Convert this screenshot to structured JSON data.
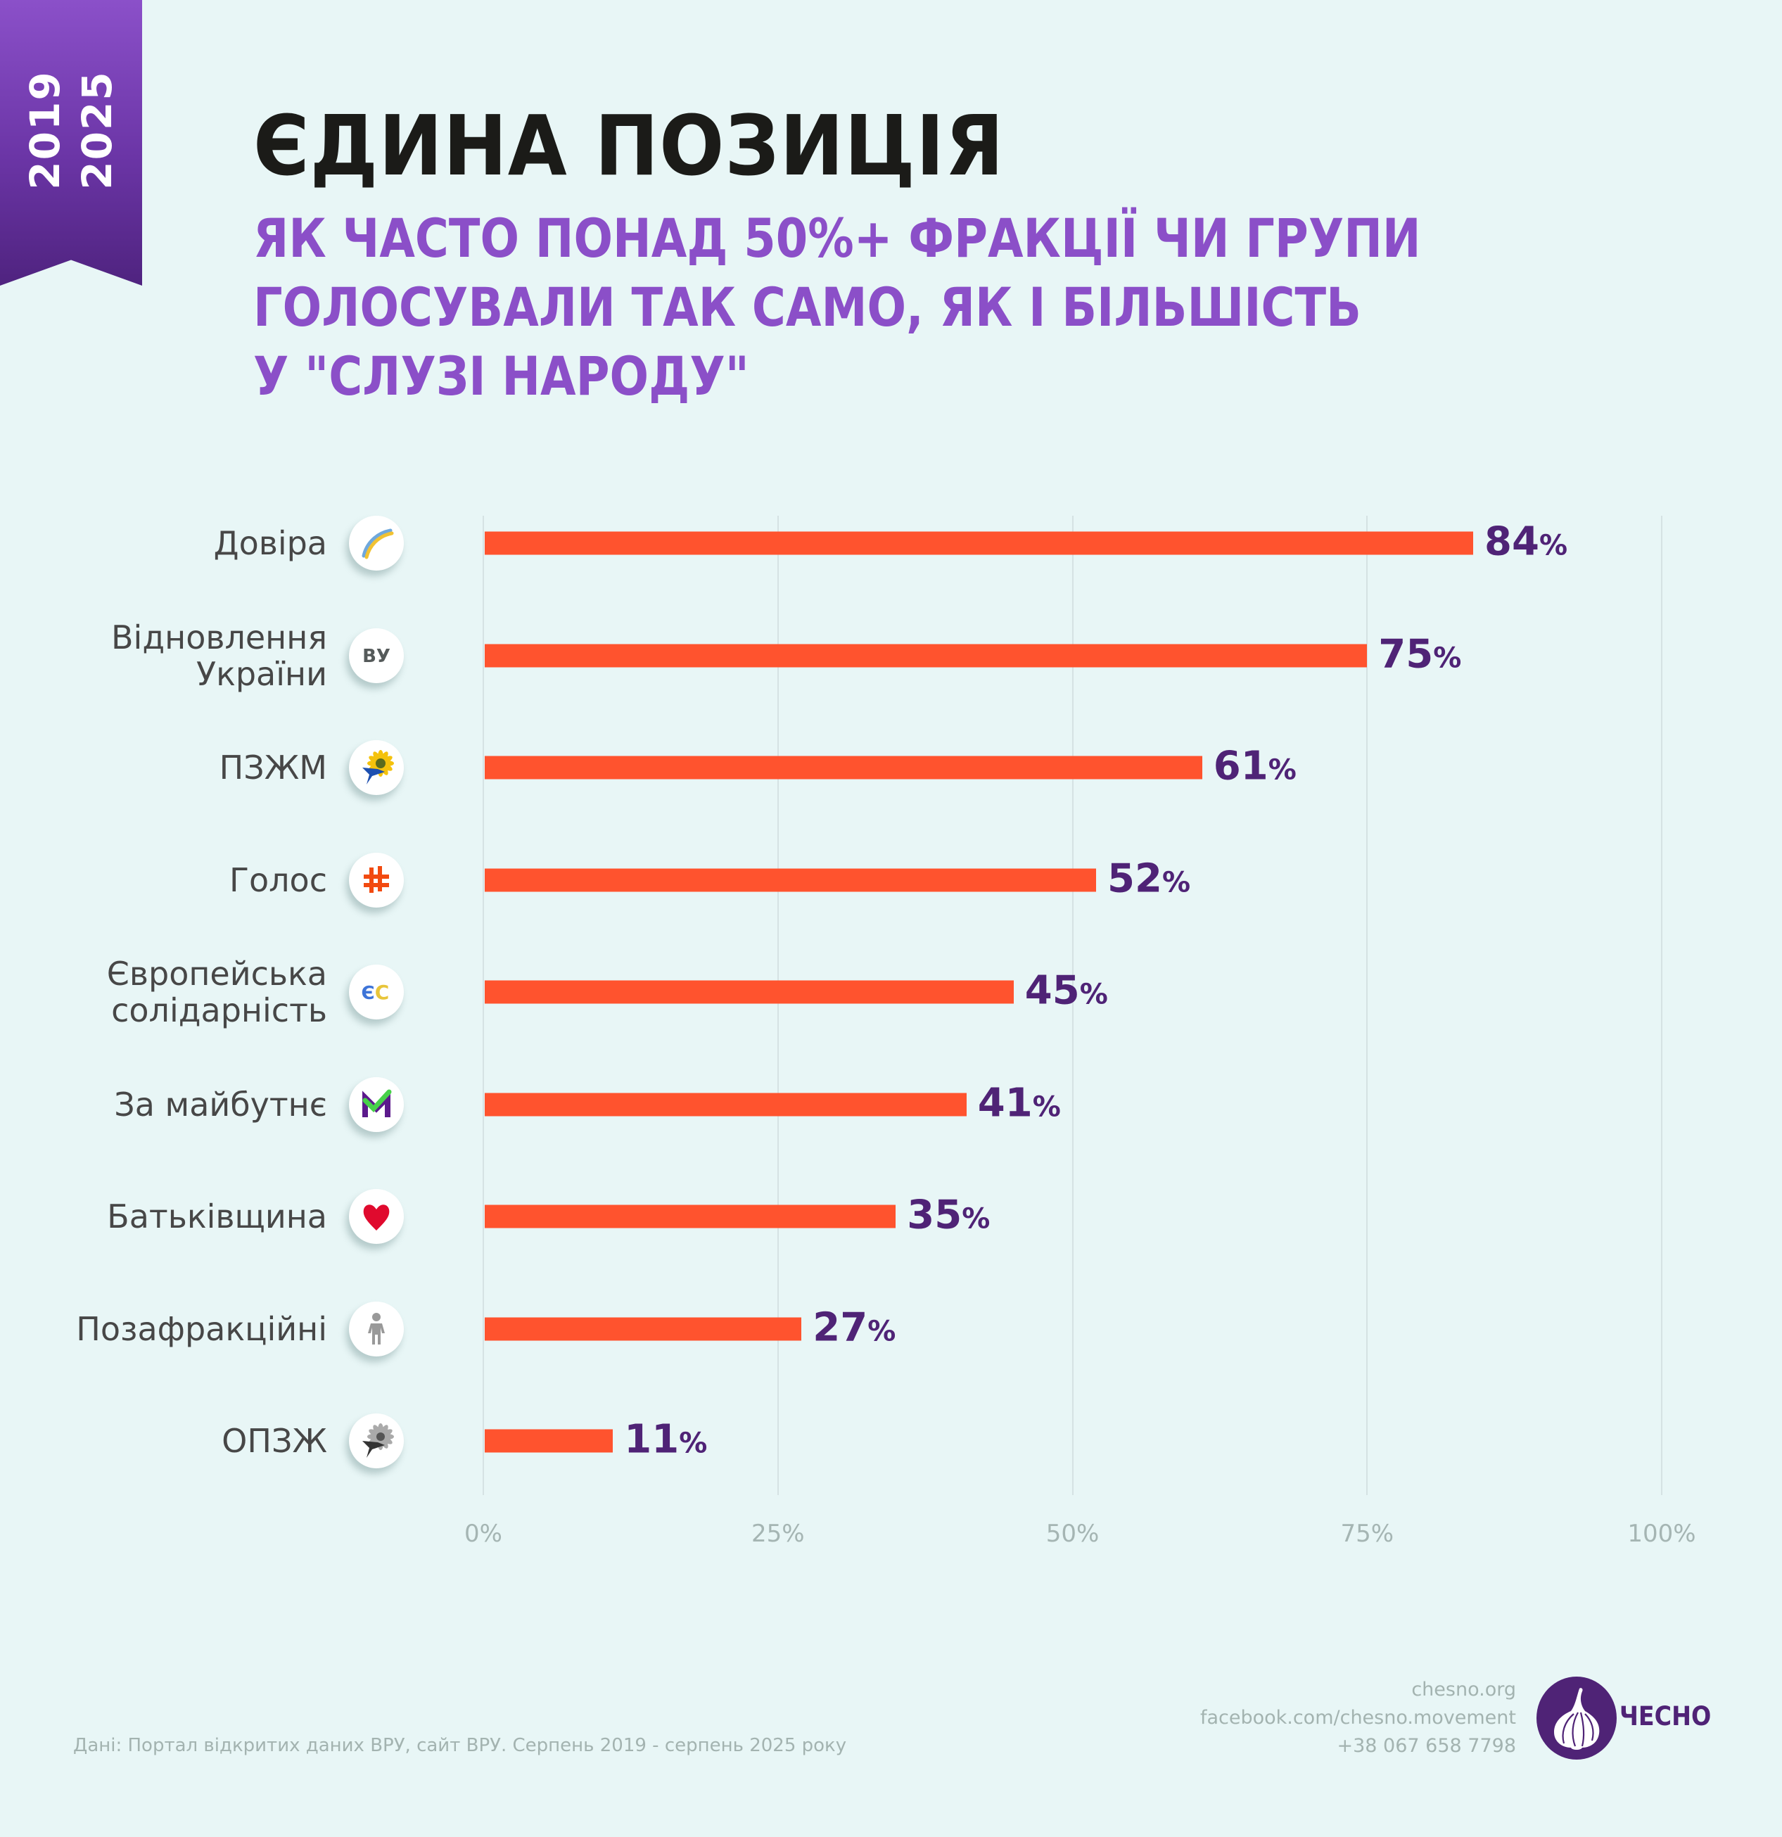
{
  "ribbon": {
    "line1": "2019",
    "line2": "2025"
  },
  "header": {
    "title": "ЄДИНА ПОЗИЦІЯ",
    "subtitle_lines": [
      "ЯК ЧАСТО ПОНАД 50%+ ФРАКЦІЇ ЧИ ГРУПИ",
      "ГОЛОСУВАЛИ ТАК САМО, ЯК І БІЛЬШІСТЬ",
      "У \"СЛУЗІ НАРОДУ\""
    ]
  },
  "colors": {
    "bar": "#ff532e",
    "value_label": "#4f2376",
    "title": "#1b1b18",
    "subtitle": "#8b4fc8",
    "background": "#e8f6f6"
  },
  "chart_data": {
    "type": "bar",
    "orientation": "horizontal",
    "title": "ЄДИНА ПОЗИЦІЯ",
    "subtitle": "ЯК ЧАСТО ПОНАД 50%+ ФРАКЦІЇ ЧИ ГРУПИ ГОЛОСУВАЛИ ТАК САМО, ЯК І БІЛЬШІСТЬ У \"СЛУЗІ НАРОДУ\"",
    "xlabel": "",
    "ylabel": "",
    "xlim": [
      0,
      100
    ],
    "unit": "%",
    "grid": true,
    "x_ticks": [
      0,
      25,
      50,
      75,
      100
    ],
    "x_tick_labels": [
      "0%",
      "25%",
      "50%",
      "75%",
      "100%"
    ],
    "categories": [
      {
        "label_lines": [
          "Довіра"
        ],
        "icon": "dovira-rainbow-icon"
      },
      {
        "label_lines": [
          "Відновлення",
          "України"
        ],
        "icon": "vu-letters-icon"
      },
      {
        "label_lines": [
          "ПЗЖМ"
        ],
        "icon": "sunflower-dove-icon"
      },
      {
        "label_lines": [
          "Голос"
        ],
        "icon": "golos-hashtag-icon"
      },
      {
        "label_lines": [
          "Європейська",
          "солідарність"
        ],
        "icon": "es-letters-icon"
      },
      {
        "label_lines": [
          "За майбутнє"
        ],
        "icon": "checkmark-m-icon"
      },
      {
        "label_lines": [
          "Батьківщина"
        ],
        "icon": "heart-icon"
      },
      {
        "label_lines": [
          "Позафракційні"
        ],
        "icon": "person-icon"
      },
      {
        "label_lines": [
          "ОПЗЖ"
        ],
        "icon": "grey-sunflower-dove-icon"
      }
    ],
    "values": [
      84,
      75,
      61,
      52,
      45,
      41,
      35,
      27,
      11
    ]
  },
  "footer": {
    "source": "Дані: Портал відкритих даних ВРУ, сайт ВРУ. Серпень 2019 - серпень 2025 року",
    "contacts": [
      "chesno.org",
      "facebook.com/chesno.movement",
      "+38 067 658 7798"
    ],
    "logo_text": "ЧЕСНО"
  }
}
